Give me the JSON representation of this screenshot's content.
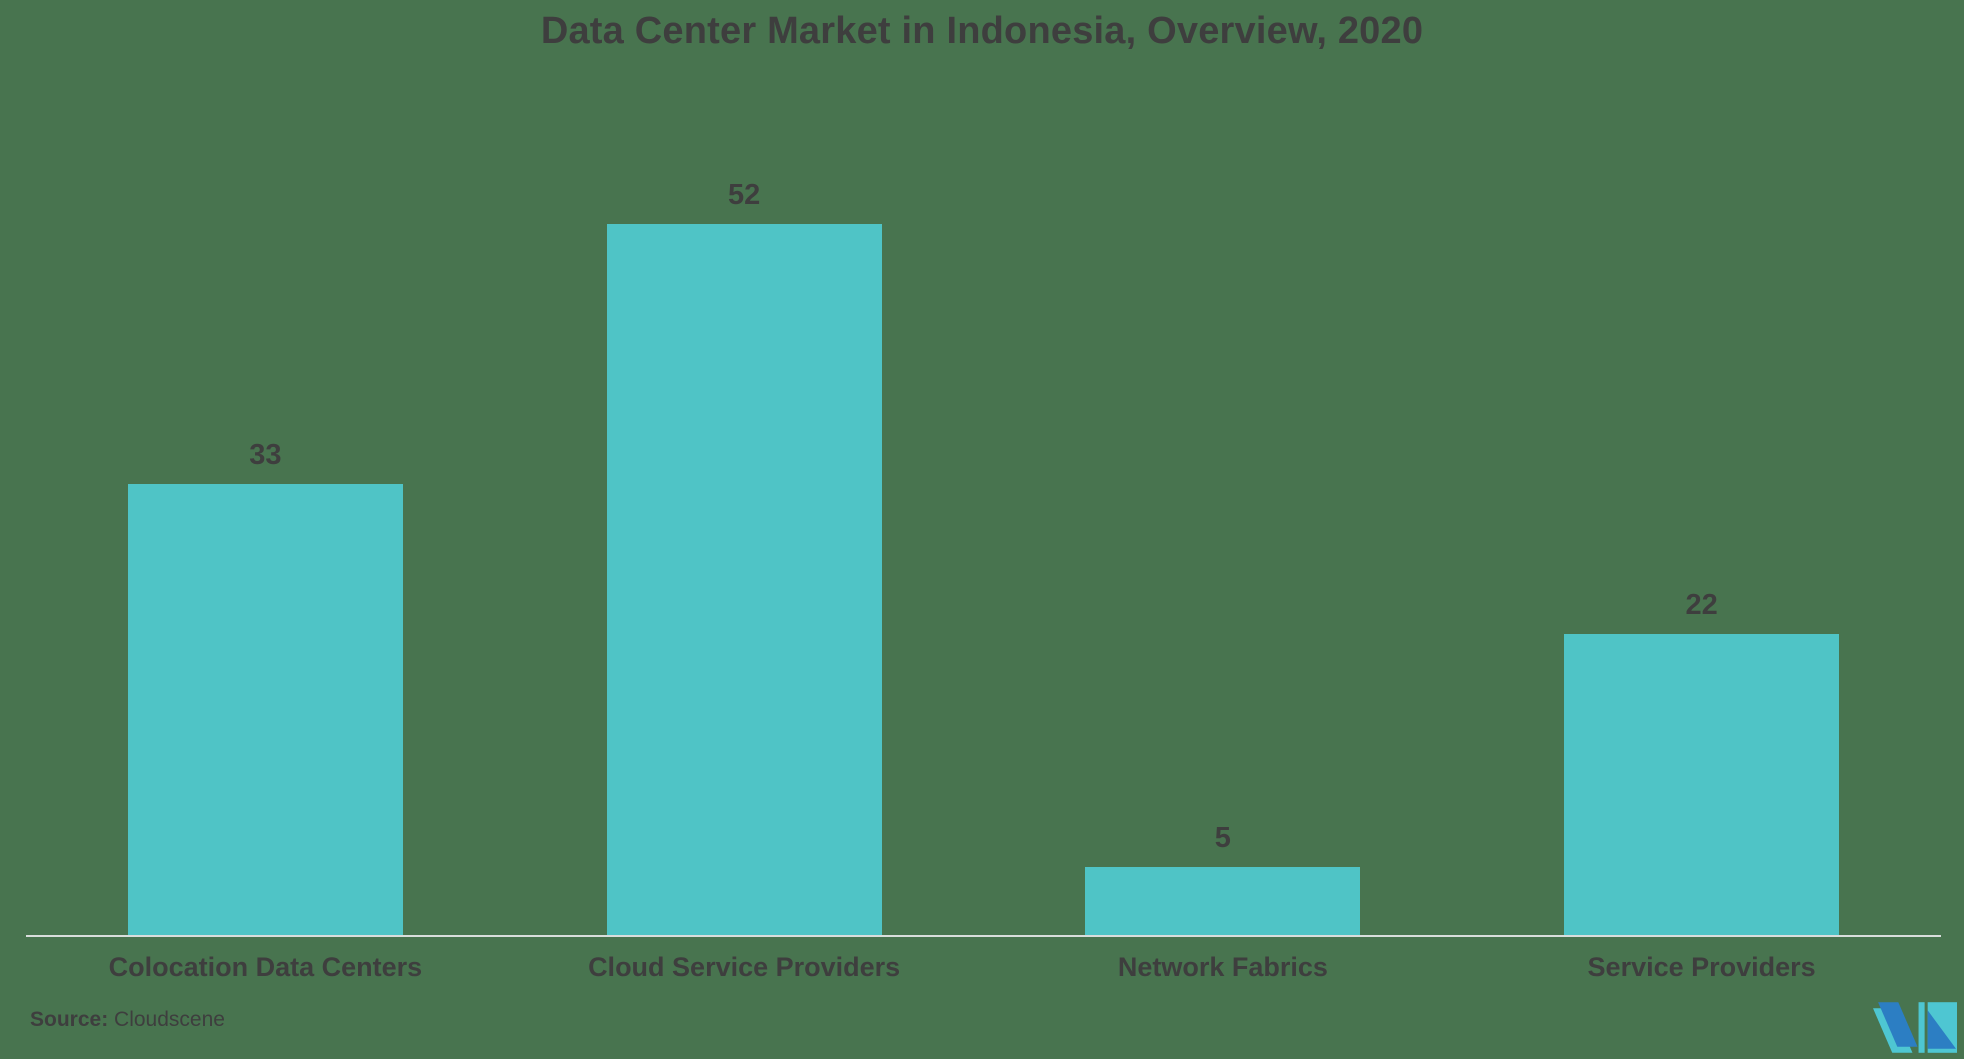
{
  "title": "Data Center Market in Indonesia, Overview, 2020",
  "source": {
    "label": "Source:",
    "value": "Cloudscene"
  },
  "icons": {
    "logo": "mordor-intelligence-mark"
  },
  "colors": {
    "background": "#48744F",
    "bar": "#4FC4C6",
    "text": "#3E3E3E",
    "axis_line": "#D9DEDC",
    "logo_teal": "#4EC6D2",
    "logo_blue": "#2C7EC3"
  },
  "chart_data": {
    "type": "bar",
    "title": "Data Center Market in Indonesia, Overview, 2020",
    "categories": [
      "Colocation Data Centers",
      "Cloud Service Providers",
      "Network Fabrics",
      "Service Providers"
    ],
    "values": [
      33,
      52,
      5,
      22
    ],
    "xlabel": "",
    "ylabel": "",
    "ylim": [
      0,
      61
    ],
    "bar_color": "#4FC4C6",
    "value_labels": true,
    "grid": false,
    "legend": false,
    "axes_shown": [
      "bottom"
    ]
  }
}
